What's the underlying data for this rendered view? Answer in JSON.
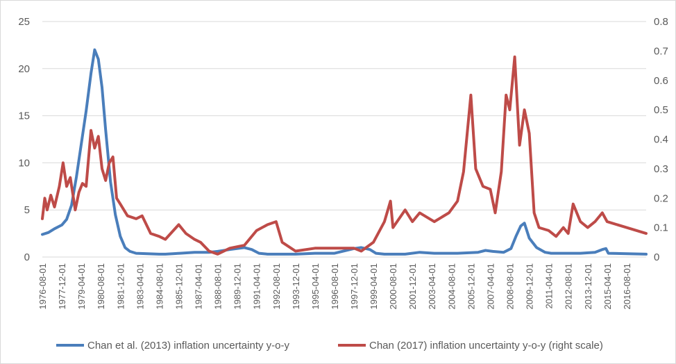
{
  "chart_data": {
    "type": "line",
    "title": "",
    "xlabel": "",
    "ylabel_left": "",
    "ylabel_right": "",
    "x_ticks": [
      "1976-08-01",
      "1977-12-01",
      "1979-04-01",
      "1980-08-01",
      "1981-12-01",
      "1983-04-01",
      "1984-08-01",
      "1985-12-01",
      "1987-04-01",
      "1988-08-01",
      "1989-12-01",
      "1991-04-01",
      "1992-08-01",
      "1993-12-01",
      "1995-04-01",
      "1996-08-01",
      "1997-12-01",
      "1999-04-01",
      "2000-08-01",
      "2001-12-01",
      "2003-04-01",
      "2004-08-01",
      "2005-12-01",
      "2007-04-01",
      "2008-08-01",
      "2009-12-01",
      "2011-04-01",
      "2012-08-01",
      "2013-12-01",
      "2015-04-01",
      "2016-08-01"
    ],
    "x_range": [
      "1976-08-01",
      "2017-12-01"
    ],
    "y_left": {
      "min": 0,
      "max": 25,
      "ticks": [
        "0",
        "5",
        "10",
        "15",
        "20",
        "25"
      ]
    },
    "y_right": {
      "min": 0,
      "max": 0.8,
      "ticks": [
        "0",
        "0.1",
        "0.2",
        "0.3",
        "0.4",
        "0.5",
        "0.6",
        "0.7",
        "0.8"
      ]
    },
    "grid": true,
    "legend_position": "bottom",
    "series": [
      {
        "name": "Chan et al. (2013) inflation uncertainty y-o-y",
        "axis": "left",
        "color": "#4a7ebb",
        "points": [
          [
            "1976-08-01",
            2.4
          ],
          [
            "1977-01-01",
            2.6
          ],
          [
            "1977-06-01",
            3.0
          ],
          [
            "1977-12-01",
            3.4
          ],
          [
            "1978-04-01",
            4.0
          ],
          [
            "1978-08-01",
            5.5
          ],
          [
            "1978-12-01",
            8.5
          ],
          [
            "1979-04-01",
            12.0
          ],
          [
            "1979-08-01",
            15.5
          ],
          [
            "1979-12-01",
            19.5
          ],
          [
            "1980-03-01",
            22.0
          ],
          [
            "1980-06-01",
            21.0
          ],
          [
            "1980-09-01",
            18.0
          ],
          [
            "1980-12-01",
            13.5
          ],
          [
            "1981-04-01",
            8.0
          ],
          [
            "1981-08-01",
            4.5
          ],
          [
            "1981-12-01",
            2.2
          ],
          [
            "1982-04-01",
            1.0
          ],
          [
            "1982-08-01",
            0.6
          ],
          [
            "1983-01-01",
            0.4
          ],
          [
            "1984-08-01",
            0.3
          ],
          [
            "1985-01-01",
            0.3
          ],
          [
            "1986-01-01",
            0.4
          ],
          [
            "1987-01-01",
            0.5
          ],
          [
            "1988-01-01",
            0.5
          ],
          [
            "1988-08-01",
            0.6
          ],
          [
            "1989-06-01",
            0.8
          ],
          [
            "1990-06-01",
            1.0
          ],
          [
            "1990-12-01",
            0.8
          ],
          [
            "1991-06-01",
            0.4
          ],
          [
            "1992-01-01",
            0.3
          ],
          [
            "1993-12-01",
            0.3
          ],
          [
            "1995-04-01",
            0.4
          ],
          [
            "1996-08-01",
            0.4
          ],
          [
            "1997-12-01",
            0.9
          ],
          [
            "1998-06-01",
            1.0
          ],
          [
            "1999-01-01",
            0.8
          ],
          [
            "1999-06-01",
            0.4
          ],
          [
            "2000-01-01",
            0.3
          ],
          [
            "2001-06-01",
            0.3
          ],
          [
            "2002-06-01",
            0.5
          ],
          [
            "2003-06-01",
            0.4
          ],
          [
            "2005-01-01",
            0.4
          ],
          [
            "2006-06-01",
            0.5
          ],
          [
            "2006-12-01",
            0.7
          ],
          [
            "2007-06-01",
            0.6
          ],
          [
            "2008-03-01",
            0.5
          ],
          [
            "2008-09-01",
            0.9
          ],
          [
            "2009-01-01",
            2.2
          ],
          [
            "2009-05-01",
            3.3
          ],
          [
            "2009-08-01",
            3.6
          ],
          [
            "2009-12-01",
            2.0
          ],
          [
            "2010-06-01",
            1.0
          ],
          [
            "2011-01-01",
            0.5
          ],
          [
            "2011-06-01",
            0.4
          ],
          [
            "2013-06-01",
            0.4
          ],
          [
            "2014-06-01",
            0.5
          ],
          [
            "2014-12-01",
            0.8
          ],
          [
            "2015-03-01",
            0.9
          ],
          [
            "2015-05-01",
            0.4
          ],
          [
            "2017-12-01",
            0.3
          ]
        ]
      },
      {
        "name": "Chan (2017) inflation uncertainty y-o-y (right scale)",
        "axis": "right",
        "color": "#be4b48",
        "points": [
          [
            "1976-08-01",
            0.13
          ],
          [
            "1976-10-01",
            0.2
          ],
          [
            "1976-12-01",
            0.16
          ],
          [
            "1977-03-01",
            0.21
          ],
          [
            "1977-06-01",
            0.17
          ],
          [
            "1977-10-01",
            0.24
          ],
          [
            "1978-01-01",
            0.32
          ],
          [
            "1978-04-01",
            0.24
          ],
          [
            "1978-07-01",
            0.27
          ],
          [
            "1978-11-01",
            0.16
          ],
          [
            "1979-02-01",
            0.22
          ],
          [
            "1979-05-01",
            0.25
          ],
          [
            "1979-08-01",
            0.24
          ],
          [
            "1979-12-01",
            0.43
          ],
          [
            "1980-03-01",
            0.37
          ],
          [
            "1980-06-01",
            0.41
          ],
          [
            "1980-09-01",
            0.3
          ],
          [
            "1980-12-01",
            0.26
          ],
          [
            "1981-03-01",
            0.32
          ],
          [
            "1981-06-01",
            0.34
          ],
          [
            "1981-09-01",
            0.2
          ],
          [
            "1981-12-01",
            0.18
          ],
          [
            "1982-06-01",
            0.14
          ],
          [
            "1983-01-01",
            0.13
          ],
          [
            "1983-06-01",
            0.14
          ],
          [
            "1984-01-01",
            0.08
          ],
          [
            "1984-08-01",
            0.07
          ],
          [
            "1985-01-01",
            0.06
          ],
          [
            "1985-12-01",
            0.11
          ],
          [
            "1986-06-01",
            0.08
          ],
          [
            "1987-01-01",
            0.06
          ],
          [
            "1987-06-01",
            0.05
          ],
          [
            "1988-01-01",
            0.02
          ],
          [
            "1988-08-01",
            0.01
          ],
          [
            "1989-06-01",
            0.03
          ],
          [
            "1990-06-01",
            0.04
          ],
          [
            "1991-04-01",
            0.09
          ],
          [
            "1992-01-01",
            0.11
          ],
          [
            "1992-08-01",
            0.12
          ],
          [
            "1993-01-01",
            0.05
          ],
          [
            "1993-12-01",
            0.02
          ],
          [
            "1995-04-01",
            0.03
          ],
          [
            "1996-08-01",
            0.03
          ],
          [
            "1997-12-01",
            0.03
          ],
          [
            "1998-06-01",
            0.02
          ],
          [
            "1999-04-01",
            0.05
          ],
          [
            "2000-01-01",
            0.12
          ],
          [
            "2000-06-01",
            0.19
          ],
          [
            "2000-08-01",
            0.1
          ],
          [
            "2001-06-01",
            0.16
          ],
          [
            "2001-12-01",
            0.12
          ],
          [
            "2002-06-01",
            0.15
          ],
          [
            "2003-06-01",
            0.12
          ],
          [
            "2004-06-01",
            0.15
          ],
          [
            "2005-01-01",
            0.19
          ],
          [
            "2005-06-01",
            0.29
          ],
          [
            "2005-12-01",
            0.55
          ],
          [
            "2006-04-01",
            0.3
          ],
          [
            "2006-10-01",
            0.24
          ],
          [
            "2007-04-01",
            0.23
          ],
          [
            "2007-08-01",
            0.15
          ],
          [
            "2008-01-01",
            0.29
          ],
          [
            "2008-05-01",
            0.55
          ],
          [
            "2008-08-01",
            0.5
          ],
          [
            "2008-12-01",
            0.68
          ],
          [
            "2009-04-01",
            0.38
          ],
          [
            "2009-08-01",
            0.5
          ],
          [
            "2009-12-01",
            0.42
          ],
          [
            "2010-04-01",
            0.15
          ],
          [
            "2010-08-01",
            0.1
          ],
          [
            "2011-04-01",
            0.09
          ],
          [
            "2011-10-01",
            0.07
          ],
          [
            "2012-04-01",
            0.1
          ],
          [
            "2012-08-01",
            0.08
          ],
          [
            "2012-12-01",
            0.18
          ],
          [
            "2013-06-01",
            0.12
          ],
          [
            "2013-12-01",
            0.1
          ],
          [
            "2014-06-01",
            0.12
          ],
          [
            "2014-12-01",
            0.15
          ],
          [
            "2015-04-01",
            0.12
          ],
          [
            "2016-08-01",
            0.1
          ],
          [
            "2017-12-01",
            0.08
          ]
        ]
      }
    ]
  }
}
